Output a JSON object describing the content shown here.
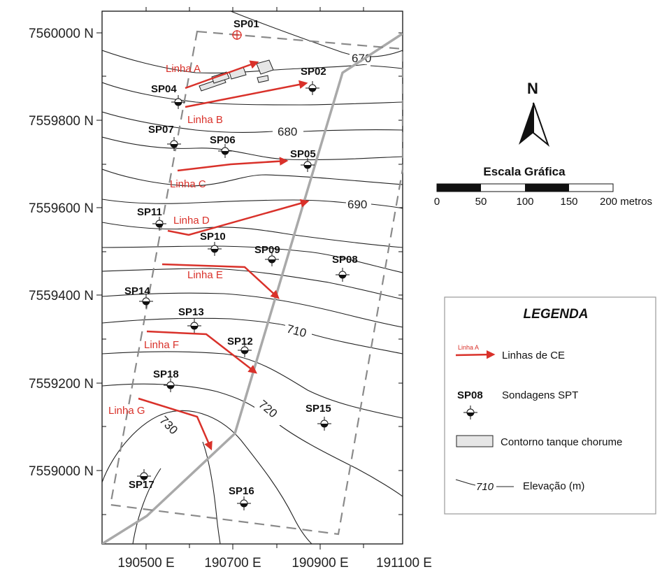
{
  "colors": {
    "ce_line": "#d9312a",
    "boundary": "#8a8a8a",
    "road": "#a9a9a9",
    "tank_fill": "#e6e6e6",
    "contour": "#222222"
  },
  "axes": {
    "y_ticks": [
      "7560000 N",
      "7559800 N",
      "7559600 N",
      "7559400 N",
      "7559200 N",
      "7559000 N"
    ],
    "x_ticks": [
      "190500 E",
      "190700 E",
      "190900 E",
      "191100 E"
    ]
  },
  "elevation_labels": [
    "670",
    "680",
    "690",
    "710",
    "720",
    "730"
  ],
  "ce_lines": [
    {
      "id": "A",
      "label": "Linha A"
    },
    {
      "id": "B",
      "label": "Linha B"
    },
    {
      "id": "C",
      "label": "Linha C"
    },
    {
      "id": "D",
      "label": "Linha D"
    },
    {
      "id": "E",
      "label": "Linha E"
    },
    {
      "id": "F",
      "label": "Linha F"
    },
    {
      "id": "G",
      "label": "Linha G"
    }
  ],
  "boreholes": [
    "SP01",
    "SP02",
    "SP04",
    "SP07",
    "SP06",
    "SP05",
    "SP11",
    "SP10",
    "SP09",
    "SP08",
    "SP14",
    "SP13",
    "SP12",
    "SP18",
    "SP15",
    "SP17",
    "SP16"
  ],
  "north": {
    "label": "N"
  },
  "scale": {
    "title": "Escala Gráfica",
    "labels": [
      "0",
      "50",
      "100",
      "150",
      "200 metros"
    ]
  },
  "legend": {
    "title": "LEGENDA",
    "line_sample": "Linha A",
    "line_text": "Linhas de CE",
    "spt_sample": "SP08",
    "spt_text": "Sondagens SPT",
    "tank_text": "Contorno tanque chorume",
    "elev_sample": "710",
    "elev_text": "Elevação (m)"
  }
}
